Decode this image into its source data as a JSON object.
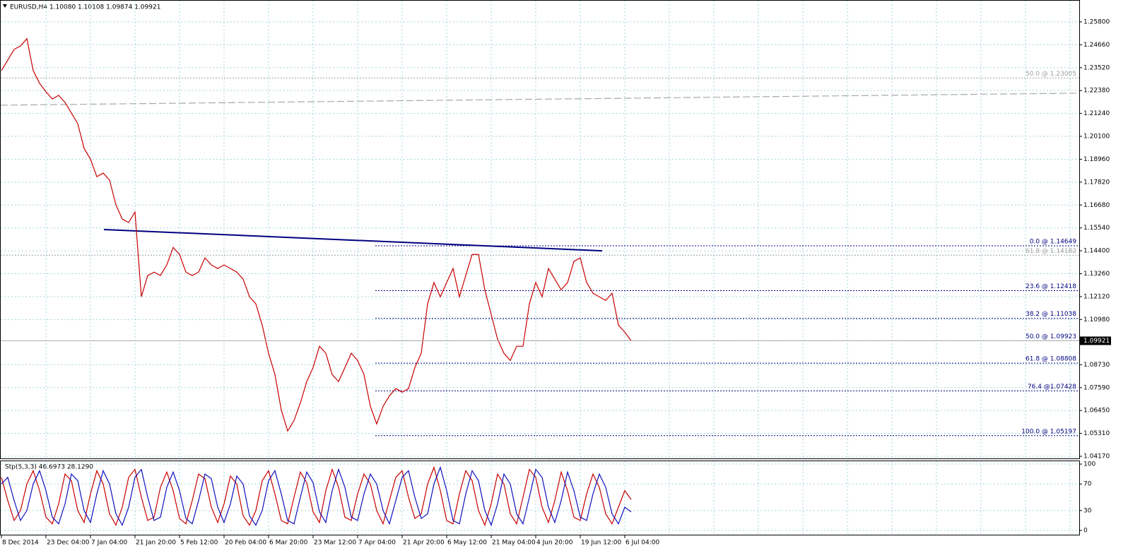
{
  "chart_data": [
    {
      "type": "line",
      "title": "EURUSD,H4  1.10080 1.10108 1.09874 1.09921",
      "categories": [
        "8 Dec 2014",
        null,
        null,
        null,
        null,
        null,
        null,
        "23 Dec 04:00",
        null,
        null,
        null,
        null,
        null,
        null,
        "7 Jan 04:00",
        null,
        null,
        null,
        null,
        null,
        null,
        "21 Jan 20:00",
        null,
        null,
        null,
        null,
        null,
        null,
        "5 Feb 12:00",
        null,
        null,
        null,
        null,
        null,
        null,
        "20 Feb 04:00",
        null,
        null,
        null,
        null,
        null,
        null,
        "6 Mar 20:00",
        null,
        null,
        null,
        null,
        null,
        null,
        "23 Mar 12:00",
        null,
        null,
        null,
        null,
        null,
        null,
        "7 Apr 04:00",
        null,
        null,
        null,
        null,
        null,
        null,
        "21 Apr 20:00",
        null,
        null,
        null,
        null,
        null,
        null,
        "6 May 12:00",
        null,
        null,
        null,
        null,
        null,
        null,
        "21 May 04:00",
        null,
        null,
        null,
        null,
        null,
        null,
        "4 Jun 20:00",
        null,
        null,
        null,
        null,
        null,
        null,
        "19 Jun 12:00",
        null,
        null,
        null,
        null,
        null,
        null,
        "6 Jul 04:00",
        null
      ],
      "series": [
        {
          "color": "#c80000",
          "values": [
            1.2337,
            1.239,
            1.2443,
            1.246,
            1.2496,
            1.2337,
            1.2274,
            1.2232,
            1.2196,
            1.2214,
            1.2179,
            1.2126,
            1.2073,
            1.195,
            1.1897,
            1.1809,
            1.1827,
            1.1792,
            1.1669,
            1.1598,
            1.1581,
            1.1633,
            1.1211,
            1.1317,
            1.1334,
            1.1317,
            1.137,
            1.1457,
            1.1422,
            1.1334,
            1.1317,
            1.1334,
            1.1405,
            1.137,
            1.1352,
            1.137,
            1.1352,
            1.1334,
            1.1299,
            1.1211,
            1.1176,
            1.107,
            1.093,
            1.0824,
            1.0648,
            1.0543,
            1.0595,
            1.0683,
            1.0789,
            1.0859,
            1.0965,
            1.093,
            1.0824,
            1.0789,
            1.0859,
            1.093,
            1.0894,
            1.0824,
            1.0666,
            1.0578,
            1.0666,
            1.0718,
            1.0754,
            1.0736,
            1.0754,
            1.0859,
            1.093,
            1.1176,
            1.1282,
            1.1211,
            1.1282,
            1.1352,
            1.1211,
            1.1317,
            1.1422,
            1.1422,
            1.1246,
            1.1123,
            1.1,
            1.093,
            1.0894,
            1.0965,
            1.0965,
            1.1176,
            1.1282,
            1.1211,
            1.1352,
            1.1299,
            1.1246,
            1.1282,
            1.1387,
            1.1405,
            1.1282,
            1.1229,
            1.1211,
            1.1193,
            1.1229,
            1.107,
            1.1035,
            1.0992
          ]
        }
      ],
      "ylim": [
        1.041,
        1.2629
      ],
      "yticks": [
        {
          "value": 1.258,
          "label": "1.25800"
        },
        {
          "value": 1.2466,
          "label": "1.24660"
        },
        {
          "value": 1.2352,
          "label": "1.23520"
        },
        {
          "value": 1.2238,
          "label": "1.22380"
        },
        {
          "value": 1.2124,
          "label": "1.21240"
        },
        {
          "value": 1.201,
          "label": "1.20100"
        },
        {
          "value": 1.1896,
          "label": "1.18960"
        },
        {
          "value": 1.1782,
          "label": "1.17820"
        },
        {
          "value": 1.1668,
          "label": "1.16680"
        },
        {
          "value": 1.1554,
          "label": "1.15540"
        },
        {
          "value": 1.144,
          "label": "1.14400"
        },
        {
          "value": 1.1326,
          "label": "1.13260"
        },
        {
          "value": 1.1212,
          "label": "1.12120"
        },
        {
          "value": 1.1098,
          "label": "1.10980"
        },
        {
          "value": 1.0873,
          "label": "1.08730"
        },
        {
          "value": 1.0759,
          "label": "1.07590"
        },
        {
          "value": 1.0645,
          "label": "1.06450"
        },
        {
          "value": 1.0531,
          "label": "1.05310"
        },
        {
          "value": 1.0417,
          "label": "1.04170"
        }
      ],
      "grid": true,
      "current_price": {
        "value": 1.09921,
        "label": "1.09921"
      },
      "fib_levels": [
        {
          "value": 1.14649,
          "label": "0.0 @ 1.14649"
        },
        {
          "value": 1.12418,
          "label": "23.6 @ 1.12418"
        },
        {
          "value": 1.11038,
          "label": "38.2 @ 1.11038"
        },
        {
          "value": 1.09923,
          "label": "50.0 @ 1.09923"
        },
        {
          "value": 1.08808,
          "label": "61.8 @ 1.08808"
        },
        {
          "value": 1.07428,
          "label": "76.4 @1.07428"
        },
        {
          "value": 1.05197,
          "label": "100.0 @ 1.05197"
        }
      ],
      "fib_color": "#000080",
      "old_fib_levels": [
        {
          "value": 1.23005,
          "label": "50.0 @ 1.23005"
        },
        {
          "value": 1.14182,
          "label": "61.8 @ 1.14182"
        }
      ],
      "old_fib_color": "#a0a0a0",
      "trendline": {
        "color": "#000080",
        "values": [
          1.1546,
          1.144
        ]
      },
      "long_ma": {
        "color": "#a8a8a8",
        "values": [
          1.2165,
          1.2225
        ]
      }
    },
    {
      "type": "line",
      "title": "Stp(5,3,3) 46.6973 28.1290",
      "series": [
        {
          "color": "#c80000",
          "values": [
            80,
            45,
            15,
            30,
            70,
            90,
            60,
            20,
            10,
            40,
            85,
            75,
            30,
            12,
            55,
            90,
            70,
            25,
            8,
            35,
            80,
            92,
            50,
            15,
            20,
            65,
            88,
            60,
            18,
            10,
            45,
            85,
            78,
            35,
            12,
            40,
            82,
            70,
            22,
            8,
            30,
            75,
            90,
            55,
            15,
            10,
            50,
            88,
            72,
            28,
            12,
            60,
            92,
            65,
            20,
            15,
            55,
            85,
            70,
            30,
            10,
            45,
            80,
            90,
            50,
            18,
            25,
            70,
            95,
            60,
            15,
            10,
            55,
            90,
            75,
            30,
            8,
            40,
            85,
            70,
            25,
            10,
            50,
            92,
            80,
            35,
            12,
            45,
            88,
            60,
            20,
            15,
            55,
            85,
            65,
            25,
            10,
            35,
            60,
            46.7
          ]
        },
        {
          "color": "#1010c0",
          "values": [
            70,
            80,
            45,
            15,
            30,
            70,
            90,
            60,
            20,
            10,
            40,
            85,
            75,
            30,
            12,
            55,
            90,
            70,
            25,
            8,
            35,
            80,
            92,
            50,
            15,
            20,
            65,
            88,
            60,
            18,
            10,
            45,
            85,
            78,
            35,
            12,
            40,
            82,
            70,
            22,
            8,
            30,
            75,
            90,
            55,
            15,
            10,
            50,
            88,
            72,
            28,
            12,
            60,
            92,
            65,
            20,
            15,
            55,
            85,
            70,
            30,
            10,
            45,
            80,
            90,
            50,
            18,
            25,
            70,
            95,
            60,
            15,
            10,
            55,
            90,
            75,
            30,
            8,
            40,
            85,
            70,
            25,
            10,
            50,
            92,
            80,
            35,
            12,
            45,
            88,
            60,
            20,
            15,
            55,
            85,
            65,
            25,
            10,
            35,
            28.1
          ]
        }
      ],
      "ylim": [
        -6.4,
        104.3
      ],
      "yticks": [
        100,
        70,
        30,
        0
      ],
      "grid": true
    }
  ]
}
